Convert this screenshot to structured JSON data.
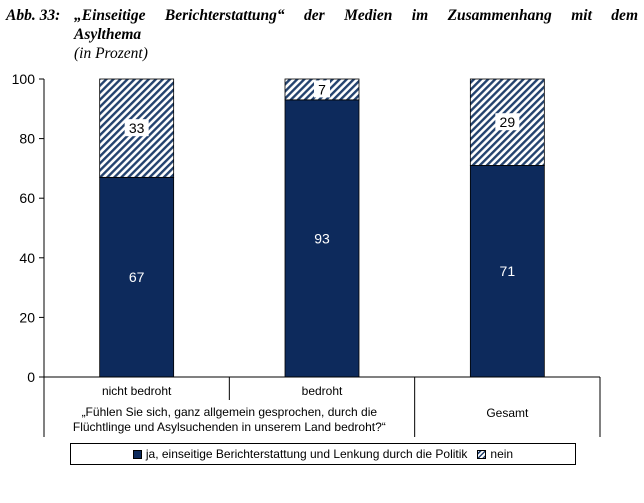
{
  "caption": {
    "label": "Abb. 33:",
    "title_line1": "„Einseitige Berichterstattung“ der Medien im Zusammenhang mit dem",
    "title_line2": "Asylthema",
    "subtitle": "(in Prozent)"
  },
  "chart_data": {
    "type": "bar",
    "stacked": true,
    "categories": [
      "nicht bedroht",
      "bedroht",
      "Gesamt"
    ],
    "group_label": "„Fühlen Sie sich, ganz allgemein gesprochen, durch die Flüchtlinge und Asylsuchenden in unserem Land bedroht?“",
    "series": [
      {
        "name": "ja, einseitige Berichterstattung und Lenkung durch die Politik",
        "values": [
          67,
          93,
          71
        ],
        "color": "#0d2a5c"
      },
      {
        "name": "nein",
        "values": [
          33,
          7,
          29
        ],
        "color": "#23426e",
        "pattern": "diagonal-hatch"
      }
    ],
    "ylim": [
      0,
      100
    ],
    "yticks": [
      "0",
      "20",
      "40",
      "60",
      "80",
      "100"
    ],
    "ylabel": "",
    "xlabel": "",
    "legend_position": "bottom",
    "grid": false
  }
}
